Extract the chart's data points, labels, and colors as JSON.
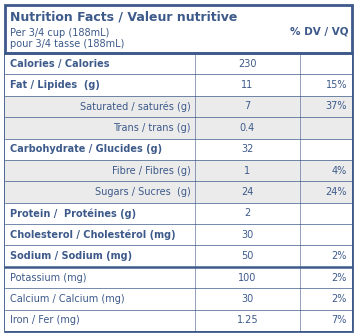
{
  "title": "Nutrition Facts / Valeur nutritive",
  "serving_line1": "Per 3/4 cup (188mL)",
  "serving_line2": "pour 3/4 tasse (188mL)",
  "dv_header": "% DV / VQ",
  "text_color": "#3d5a8a",
  "bg_color": "#ffffff",
  "row_bg_sub": "#ebebeb",
  "border_color": "#3d5a8a",
  "rows": [
    {
      "label": "Calories / Calories",
      "value": "230",
      "dv": "",
      "bold": true,
      "indent": false,
      "bg": "#ffffff",
      "thick_top": true
    },
    {
      "label": "Fat / Lipides  (g)",
      "value": "11",
      "dv": "15%",
      "bold": true,
      "indent": false,
      "bg": "#ffffff",
      "thick_top": false
    },
    {
      "label": "Saturated / saturés (g)",
      "value": "7",
      "dv": "37%",
      "bold": false,
      "indent": true,
      "bg": "#ebebeb",
      "thick_top": false
    },
    {
      "label": "Trans / trans (g)",
      "value": "0.4",
      "dv": "",
      "bold": false,
      "indent": true,
      "bg": "#ebebeb",
      "thick_top": false
    },
    {
      "label": "Carbohydrate / Glucides (g)",
      "value": "32",
      "dv": "",
      "bold": true,
      "indent": false,
      "bg": "#ffffff",
      "thick_top": false
    },
    {
      "label": "Fibre / Fibres (g)",
      "value": "1",
      "dv": "4%",
      "bold": false,
      "indent": true,
      "bg": "#ebebeb",
      "thick_top": false
    },
    {
      "label": "Sugars / Sucres  (g)",
      "value": "24",
      "dv": "24%",
      "bold": false,
      "indent": true,
      "bg": "#ebebeb",
      "thick_top": false
    },
    {
      "label": "Protein /  Protéines (g)",
      "value": "2",
      "dv": "",
      "bold": true,
      "indent": false,
      "bg": "#ffffff",
      "thick_top": false
    },
    {
      "label": "Cholesterol / Cholestérol (mg)",
      "value": "30",
      "dv": "",
      "bold": true,
      "indent": false,
      "bg": "#ffffff",
      "thick_top": false
    },
    {
      "label": "Sodium / Sodium (mg)",
      "value": "50",
      "dv": "2%",
      "bold": true,
      "indent": false,
      "bg": "#ffffff",
      "thick_top": false
    },
    {
      "label": "Potassium (mg)",
      "value": "100",
      "dv": "2%",
      "bold": false,
      "indent": false,
      "bg": "#ffffff",
      "thick_top": true
    },
    {
      "label": "Calcium / Calcium (mg)",
      "value": "30",
      "dv": "2%",
      "bold": false,
      "indent": false,
      "bg": "#ffffff",
      "thick_top": false
    },
    {
      "label": "Iron / Fer (mg)",
      "value": "1.25",
      "dv": "7%",
      "bold": false,
      "indent": false,
      "bg": "#ffffff",
      "thick_top": false
    }
  ]
}
